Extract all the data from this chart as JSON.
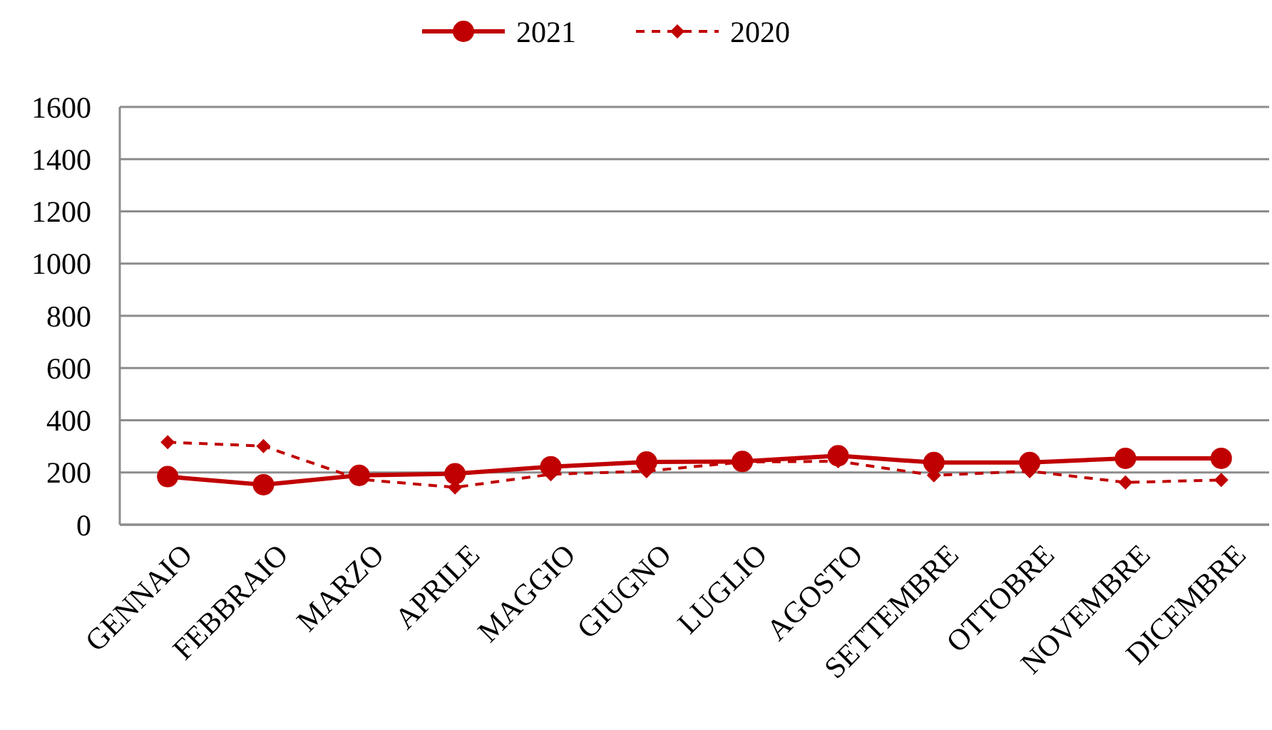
{
  "chart_data": {
    "type": "line",
    "categories": [
      "GENNAIO",
      "FEBBRAIO",
      "MARZO",
      "APRILE",
      "MAGGIO",
      "GIUGNO",
      "LUGLIO",
      "AGOSTO",
      "SETTEMBRE",
      "OTTOBRE",
      "NOVEMBRE",
      "DICEMBRE"
    ],
    "series": [
      {
        "name": "2021",
        "color": "#c00000",
        "marker": "circle",
        "line_style": "solid",
        "values": [
          184,
          153,
          189,
          195,
          222,
          240,
          242,
          264,
          238,
          238,
          254,
          254
        ]
      },
      {
        "name": "2020",
        "color": "#c00000",
        "marker": "diamond",
        "line_style": "dashed",
        "values": [
          316,
          301,
          174,
          143,
          193,
          205,
          240,
          243,
          189,
          205,
          162,
          171
        ]
      }
    ],
    "ylim": [
      0,
      1600
    ],
    "yticks": [
      0,
      200,
      400,
      600,
      800,
      1000,
      1200,
      1400,
      1600
    ],
    "grid": "y",
    "legend": "top"
  }
}
